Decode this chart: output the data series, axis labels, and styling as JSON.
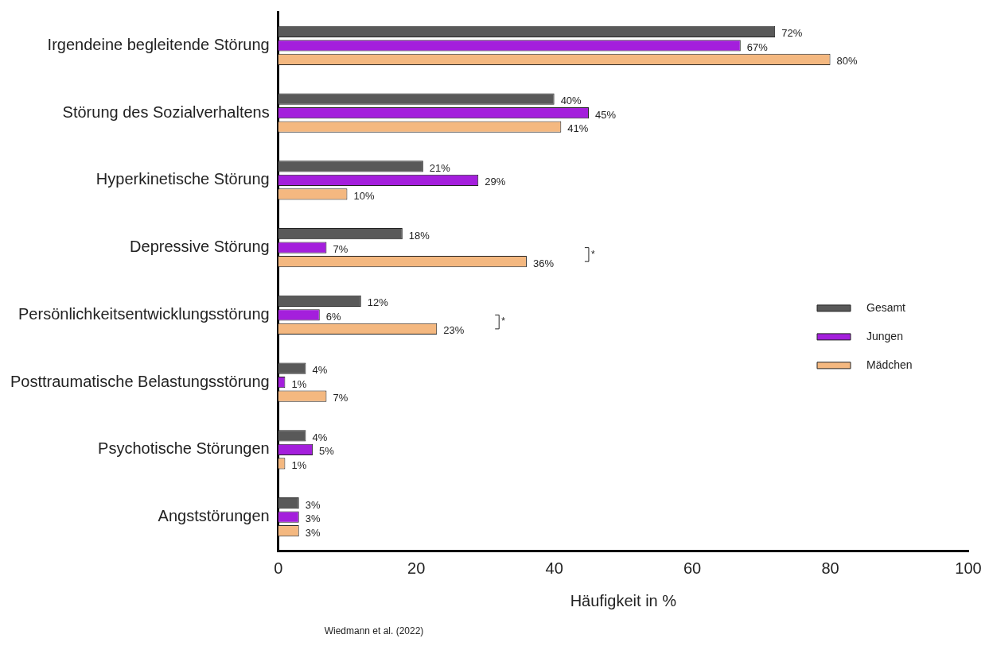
{
  "chart_data": {
    "type": "bar",
    "orientation": "horizontal",
    "xlabel": "Häufigkeit in %",
    "categories": [
      "Irgendeine begleitende Störung",
      "Störung des Sozialverhaltens",
      "Hyperkinetische Störung",
      "Depressive Störung",
      "Persönlichkeitsentwicklungsstörung",
      "Posttraumatische Belastungsstörung",
      "Psychotische Störungen",
      "Angststörungen"
    ],
    "series": [
      {
        "name": "Gesamt",
        "color": "#595959",
        "values": [
          72,
          40,
          21,
          18,
          12,
          4,
          4,
          3
        ],
        "value_labels": [
          "72%",
          "40%",
          "21%",
          "18%",
          "12%",
          "4%",
          "4%",
          "3%"
        ]
      },
      {
        "name": "Jungen",
        "color": "#a41fdc",
        "values": [
          67,
          45,
          29,
          7,
          6,
          1,
          5,
          3
        ],
        "value_labels": [
          "67%",
          "45%",
          "29%",
          "7%",
          "6%",
          "1%",
          "5%",
          "3%"
        ]
      },
      {
        "name": "Mädchen",
        "color": "#f4b880",
        "values": [
          80,
          41,
          10,
          36,
          23,
          7,
          1,
          3
        ],
        "value_labels": [
          "80%",
          "41%",
          "10%",
          "36%",
          "23%",
          "7%",
          "1%",
          "3%"
        ]
      }
    ],
    "xlim": [
      0,
      100
    ],
    "xticks": [
      0,
      20,
      40,
      60,
      80,
      100
    ],
    "grid": false,
    "legend": "right",
    "annotations": [
      "*",
      "*",
      "Wiedmann et al. (2022)"
    ]
  }
}
